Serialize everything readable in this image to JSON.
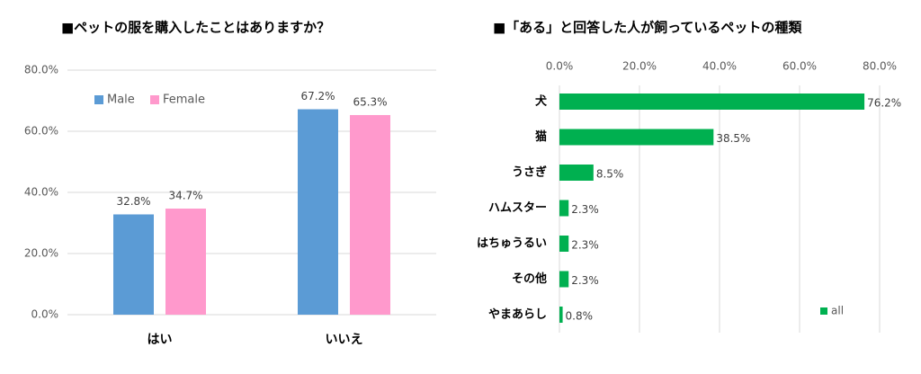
{
  "chart_data": [
    {
      "type": "bar",
      "title": "■ペットの服を購入したことはありますか？",
      "categories": [
        "はい",
        "いいえ"
      ],
      "series": [
        {
          "name": "Male",
          "color": "#5b9bd5",
          "values": [
            32.8,
            67.2
          ],
          "value_labels": [
            "32.8%",
            "67.2%"
          ]
        },
        {
          "name": "Female",
          "color": "#ff99cc",
          "values": [
            34.7,
            65.3
          ],
          "value_labels": [
            "34.7%",
            "65.3%"
          ]
        }
      ],
      "ylim": [
        0,
        80
      ],
      "yticks": [
        {
          "value": 0,
          "label": "0.0%"
        },
        {
          "value": 20,
          "label": "20.0%"
        },
        {
          "value": 40,
          "label": "40.0%"
        },
        {
          "value": 60,
          "label": "60.0%"
        },
        {
          "value": 80,
          "label": "80.0%"
        }
      ],
      "grid": true,
      "legend": "top-left"
    },
    {
      "type": "barh",
      "title": "■「ある」と回答した人が飼っているペットの種類",
      "categories": [
        "犬",
        "猫",
        "うさぎ",
        "ハムスター",
        "はちゅうるい",
        "その他",
        "やまあらし"
      ],
      "series": [
        {
          "name": "all",
          "color": "#00b050",
          "values": [
            76.2,
            38.5,
            8.5,
            2.3,
            2.3,
            2.3,
            0.8
          ],
          "value_labels": [
            "76.2%",
            "38.5%",
            "8.5%",
            "2.3%",
            "2.3%",
            "2.3%",
            "0.8%"
          ]
        }
      ],
      "xlim": [
        0,
        80
      ],
      "xticks": [
        {
          "value": 0,
          "label": "0.0%"
        },
        {
          "value": 20,
          "label": "20.0%"
        },
        {
          "value": 40,
          "label": "40.0%"
        },
        {
          "value": 60,
          "label": "60.0%"
        },
        {
          "value": 80,
          "label": "80.0%"
        }
      ],
      "grid": true,
      "legend": "bottom-right"
    }
  ]
}
